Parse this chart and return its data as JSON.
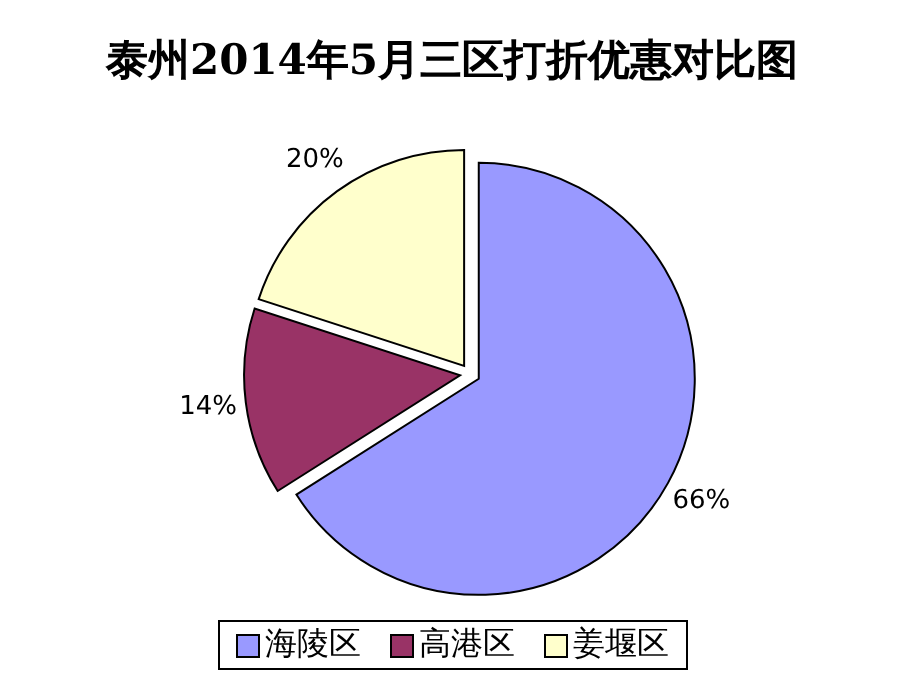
{
  "chart_data": {
    "type": "pie",
    "title": "泰州2014年5月三区打折优惠对比图",
    "categories": [
      "海陵区",
      "高港区",
      "姜堰区"
    ],
    "values": [
      66,
      14,
      20
    ],
    "colors": [
      "#9999ff",
      "#993366",
      "#ffffcc"
    ],
    "value_labels": [
      "66%",
      "14%",
      "20%"
    ],
    "legend": "bottom"
  }
}
